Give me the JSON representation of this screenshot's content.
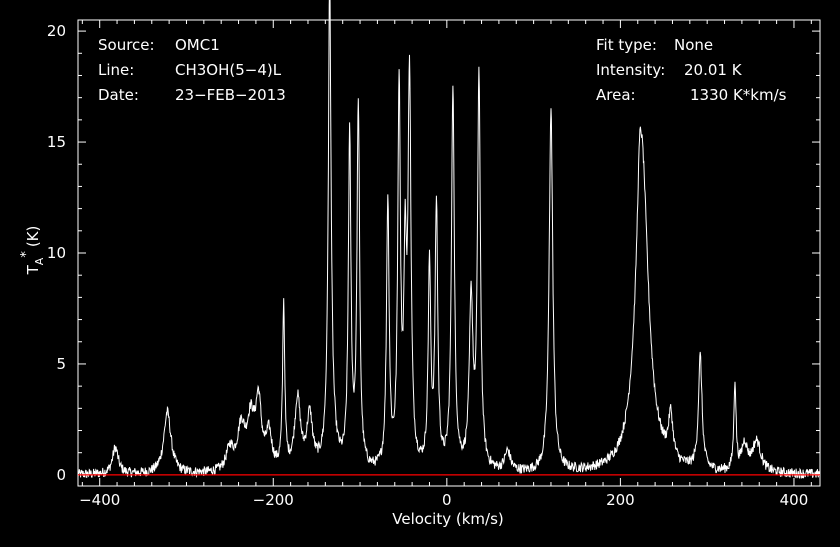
{
  "chart_data": {
    "type": "line",
    "xlabel": "Velocity (km/s)",
    "ylabel_main": "T",
    "ylabel_sub": "A",
    "ylabel_sup": "*",
    "ylabel_unit": "(K)",
    "xlim": [
      -425,
      430
    ],
    "ylim": [
      -0.5,
      20.5
    ],
    "xticks": [
      -400,
      -200,
      0,
      200,
      400
    ],
    "xtick_labels": [
      "−400",
      "−200",
      "0",
      "200",
      "400"
    ],
    "yticks": [
      0,
      5,
      10,
      15,
      20
    ],
    "ytick_labels": [
      "0",
      "5",
      "10",
      "15",
      "20"
    ],
    "baseline": 0,
    "grid": false,
    "colors": {
      "background": "#000000",
      "spectrum": "#ffffff",
      "baseline": "#ff0000",
      "axes": "#ffffff"
    },
    "info_left": [
      {
        "key": "Source:",
        "value": "OMC1"
      },
      {
        "key": "Line:",
        "value": "CH3OH(5−4)L"
      },
      {
        "key": "Date:",
        "value": "23−FEB−2013"
      }
    ],
    "info_right": [
      {
        "key": "Fit type:",
        "value": "None"
      },
      {
        "key": "Intensity:",
        "value": "20.01 K"
      },
      {
        "key": "Area:",
        "value": "1330 K*km/s"
      }
    ],
    "series": [
      {
        "type": "spectrum",
        "components": [
          {
            "center": -382,
            "amplitude": 1.2,
            "width": 4
          },
          {
            "center": -322,
            "amplitude": 2.8,
            "width": 5
          },
          {
            "center": -250,
            "amplitude": 1.0,
            "width": 5
          },
          {
            "center": -237,
            "amplitude": 1.9,
            "width": 5
          },
          {
            "center": -226,
            "amplitude": 2.2,
            "width": 5
          },
          {
            "center": -217,
            "amplitude": 3.0,
            "width": 4
          },
          {
            "center": -205,
            "amplitude": 1.6,
            "width": 4
          },
          {
            "center": -188,
            "amplitude": 7.4,
            "width": 1.5
          },
          {
            "center": -172,
            "amplitude": 3.2,
            "width": 4
          },
          {
            "center": -158,
            "amplitude": 2.4,
            "width": 4
          },
          {
            "center": -135,
            "amplitude": 19.8,
            "width": 1.8
          },
          {
            "center": -134,
            "amplitude": 2.5,
            "width": 5
          },
          {
            "center": -112,
            "amplitude": 14.8,
            "width": 1.8
          },
          {
            "center": -102,
            "amplitude": 16.4,
            "width": 1.8
          },
          {
            "center": -68,
            "amplitude": 12.0,
            "width": 1.8
          },
          {
            "center": -55,
            "amplitude": 17.1,
            "width": 1.8
          },
          {
            "center": -48,
            "amplitude": 8.5,
            "width": 1.8
          },
          {
            "center": -43,
            "amplitude": 17.5,
            "width": 2
          },
          {
            "center": -20,
            "amplitude": 9.0,
            "width": 1.8
          },
          {
            "center": -12,
            "amplitude": 11.8,
            "width": 1.8
          },
          {
            "center": 7,
            "amplitude": 17.3,
            "width": 2
          },
          {
            "center": 28,
            "amplitude": 7.5,
            "width": 2.5
          },
          {
            "center": 37,
            "amplitude": 17.6,
            "width": 2
          },
          {
            "center": 70,
            "amplitude": 0.9,
            "width": 4
          },
          {
            "center": 120,
            "amplitude": 16.4,
            "width": 2.5
          },
          {
            "center": 225,
            "amplitude": 13.8,
            "width": 9
          },
          {
            "center": 222,
            "amplitude": 2.6,
            "width": 3
          },
          {
            "center": 258,
            "amplitude": 2.0,
            "width": 3
          },
          {
            "center": 292,
            "amplitude": 5.1,
            "width": 2.5
          },
          {
            "center": 332,
            "amplitude": 4.0,
            "width": 1.5
          },
          {
            "center": 343,
            "amplitude": 1.2,
            "width": 4
          },
          {
            "center": 357,
            "amplitude": 1.4,
            "width": 6
          }
        ]
      }
    ]
  }
}
